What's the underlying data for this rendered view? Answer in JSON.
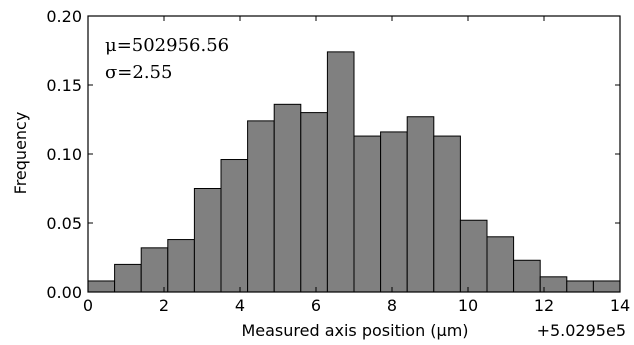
{
  "chart_data": {
    "type": "bar",
    "histogram": true,
    "bin_edges": [
      0.0,
      0.7,
      1.4,
      2.1,
      2.8,
      3.5,
      4.2,
      4.9,
      5.6,
      6.3,
      7.0,
      7.7,
      8.4,
      9.1,
      9.8,
      10.5,
      11.2,
      11.9,
      12.6,
      13.3,
      14.0
    ],
    "values": [
      0.008,
      0.02,
      0.032,
      0.038,
      0.075,
      0.096,
      0.124,
      0.136,
      0.13,
      0.174,
      0.113,
      0.116,
      0.127,
      0.113,
      0.052,
      0.04,
      0.023,
      0.011,
      0.008,
      0.008
    ],
    "xlim": [
      0,
      14
    ],
    "ylim": [
      0,
      0.2
    ],
    "xticks": [
      "0",
      "2",
      "4",
      "6",
      "8",
      "10",
      "12",
      "14"
    ],
    "yticks": [
      "0.00",
      "0.05",
      "0.10",
      "0.15",
      "0.20"
    ],
    "xlabel": "Measured axis position (μm)",
    "ylabel": "Frequency",
    "x_offset_label": "+5.0295e5",
    "annotations": [
      "μ=502956.56",
      "σ=2.55"
    ],
    "bar_color": "#808080",
    "edge_color": "#000000",
    "grid": false
  }
}
